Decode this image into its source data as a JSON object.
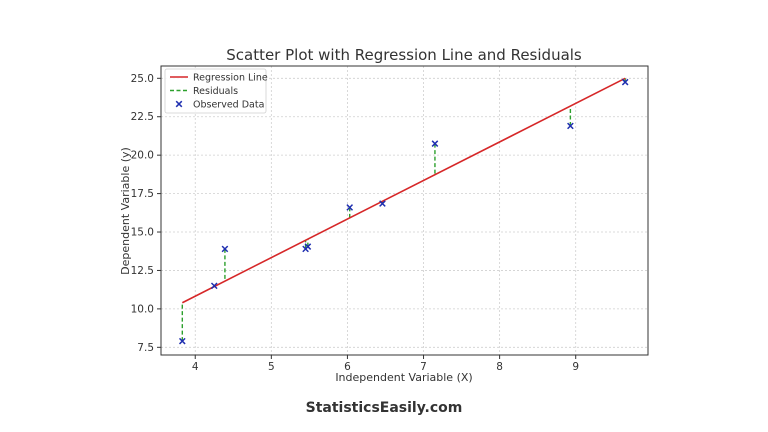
{
  "chart_data": {
    "type": "scatter",
    "title": "Scatter Plot with Regression Line and Residuals",
    "xlabel": "Independent Variable (X)",
    "ylabel": "Dependent Variable (y)",
    "xlim": [
      3.55,
      9.95
    ],
    "ylim": [
      7.0,
      25.8
    ],
    "x_ticks": [
      4,
      5,
      6,
      7,
      8,
      9
    ],
    "y_ticks": [
      7.5,
      10.0,
      12.5,
      15.0,
      17.5,
      20.0,
      22.5,
      25.0
    ],
    "x_tick_labels": [
      "4",
      "5",
      "6",
      "7",
      "8",
      "9"
    ],
    "y_tick_labels": [
      "7.5",
      "10.0",
      "12.5",
      "15.0",
      "17.5",
      "20.0",
      "22.5",
      "25.0"
    ],
    "grid": true,
    "legend_position": "top-left",
    "series": [
      {
        "name": "Observed Data",
        "kind": "scatter",
        "marker": "x",
        "color": "#1f2fb0",
        "x": [
          3.83,
          4.25,
          4.39,
          5.45,
          5.48,
          6.03,
          6.46,
          7.15,
          8.93,
          9.65
        ],
        "y": [
          7.9,
          11.5,
          13.9,
          13.9,
          14.05,
          16.6,
          16.85,
          20.75,
          21.9,
          24.75
        ]
      },
      {
        "name": "Regression Line",
        "kind": "line",
        "color": "#d62728",
        "x": [
          3.83,
          9.65
        ],
        "y": [
          10.4,
          25.0
        ]
      },
      {
        "name": "Residuals",
        "kind": "residuals",
        "color": "#2ca02c",
        "dash": "dashed"
      }
    ]
  },
  "legend": [
    {
      "label": "Regression Line",
      "kind": "line",
      "color": "#d62728"
    },
    {
      "label": "Residuals",
      "kind": "dashed",
      "color": "#2ca02c"
    },
    {
      "label": "Observed Data",
      "kind": "marker",
      "color": "#1f2fb0"
    }
  ],
  "footer": "StatisticsEasily.com"
}
